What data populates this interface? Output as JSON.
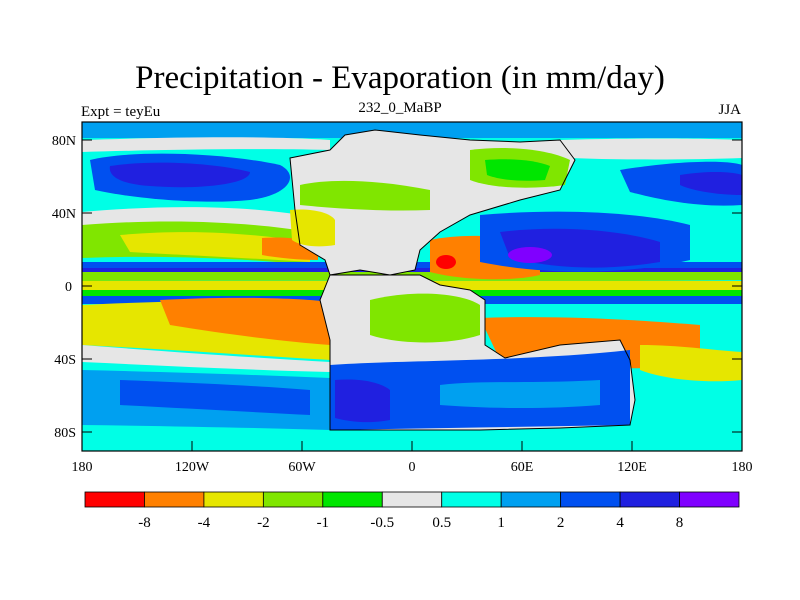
{
  "title": "Precipitation - Evaporation (in mm/day)",
  "subtitle_left": "Expt = teyEu",
  "subtitle_center": "232_0_MaBP",
  "subtitle_right": "JJA",
  "lat_ticks": [
    "80N",
    "40N",
    "0",
    "40S",
    "80S"
  ],
  "lon_ticks": [
    "180",
    "120W",
    "60W",
    "0",
    "60E",
    "120E",
    "180"
  ],
  "colorbar": {
    "colors": [
      "#ff0000",
      "#ff8000",
      "#e6e600",
      "#80e600",
      "#00e600",
      "#e6e6e6",
      "#00ffe6",
      "#00a0f0",
      "#0050f0",
      "#2020e0",
      "#8000ff"
    ],
    "labels": [
      "-8",
      "-4",
      "-2",
      "-1",
      "-0.5",
      "0.5",
      "1",
      "2",
      "4",
      "8"
    ]
  },
  "colors": {
    "sea_pos": "#00ffe6",
    "land": "#e6e6e6"
  }
}
